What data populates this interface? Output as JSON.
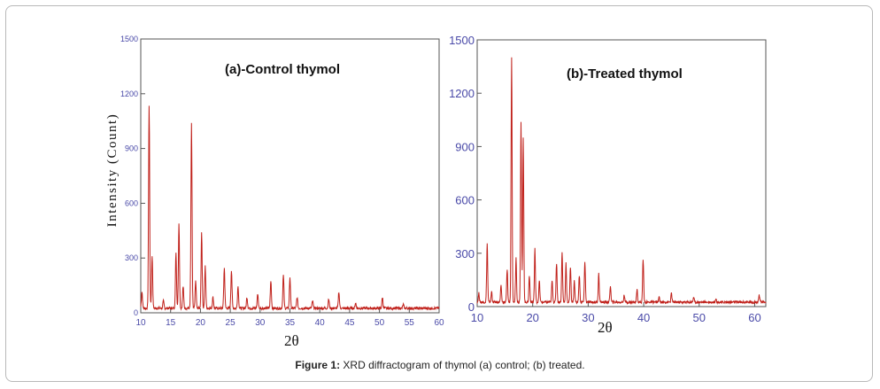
{
  "figure": {
    "caption_label": "Figure 1:",
    "caption_text": " XRD diffractogram of thymol (a) control; (b) treated."
  },
  "colors": {
    "line": "#c0201a",
    "axis": "#4a4aa8",
    "frame": "#555555"
  },
  "chart_data": [
    {
      "type": "line",
      "title": "(a)-Control thymol",
      "xlabel": "2θ",
      "ylabel": "Intensity (Count)",
      "xlim": [
        10,
        60
      ],
      "ylim": [
        0,
        1500
      ],
      "x_ticks": [
        "10",
        "15",
        "20",
        "25",
        "30",
        "35",
        "40",
        "45",
        "50",
        "55",
        "60"
      ],
      "y_ticks": [
        "0",
        "300",
        "600",
        "900",
        "1200",
        "1500"
      ],
      "grid": false,
      "peaks": [
        {
          "x": 10.2,
          "y": 90
        },
        {
          "x": 11.4,
          "y": 1110
        },
        {
          "x": 11.9,
          "y": 290
        },
        {
          "x": 13.8,
          "y": 40
        },
        {
          "x": 15.9,
          "y": 300
        },
        {
          "x": 16.4,
          "y": 460
        },
        {
          "x": 17.1,
          "y": 120
        },
        {
          "x": 18.5,
          "y": 1010
        },
        {
          "x": 19.2,
          "y": 150
        },
        {
          "x": 20.2,
          "y": 410
        },
        {
          "x": 20.8,
          "y": 230
        },
        {
          "x": 22.1,
          "y": 60
        },
        {
          "x": 24.0,
          "y": 220
        },
        {
          "x": 25.2,
          "y": 210
        },
        {
          "x": 26.3,
          "y": 120
        },
        {
          "x": 27.8,
          "y": 60
        },
        {
          "x": 29.6,
          "y": 80
        },
        {
          "x": 31.8,
          "y": 150
        },
        {
          "x": 33.9,
          "y": 180
        },
        {
          "x": 35.0,
          "y": 170
        },
        {
          "x": 36.2,
          "y": 60
        },
        {
          "x": 38.8,
          "y": 40
        },
        {
          "x": 41.5,
          "y": 50
        },
        {
          "x": 43.2,
          "y": 90
        },
        {
          "x": 46.0,
          "y": 30
        },
        {
          "x": 50.5,
          "y": 60
        },
        {
          "x": 54.0,
          "y": 20
        }
      ]
    },
    {
      "type": "line",
      "title": "(b)-Treated thymol",
      "xlabel": "2θ",
      "ylabel": "",
      "xlim": [
        10,
        62
      ],
      "ylim": [
        0,
        1500
      ],
      "x_ticks": [
        "10",
        "20",
        "30",
        "40",
        "50",
        "60"
      ],
      "y_ticks": [
        "0",
        "300",
        "600",
        "900",
        "1200",
        "1500"
      ],
      "grid": false,
      "peaks": [
        {
          "x": 10.3,
          "y": 50
        },
        {
          "x": 11.8,
          "y": 330
        },
        {
          "x": 12.6,
          "y": 60
        },
        {
          "x": 14.3,
          "y": 90
        },
        {
          "x": 15.4,
          "y": 180
        },
        {
          "x": 16.2,
          "y": 1370
        },
        {
          "x": 17.0,
          "y": 250
        },
        {
          "x": 17.9,
          "y": 1020
        },
        {
          "x": 18.3,
          "y": 920
        },
        {
          "x": 19.4,
          "y": 150
        },
        {
          "x": 20.4,
          "y": 300
        },
        {
          "x": 21.2,
          "y": 120
        },
        {
          "x": 23.5,
          "y": 120
        },
        {
          "x": 24.3,
          "y": 220
        },
        {
          "x": 25.3,
          "y": 280
        },
        {
          "x": 26.0,
          "y": 220
        },
        {
          "x": 26.8,
          "y": 200
        },
        {
          "x": 27.5,
          "y": 120
        },
        {
          "x": 28.4,
          "y": 150
        },
        {
          "x": 29.4,
          "y": 230
        },
        {
          "x": 31.9,
          "y": 160
        },
        {
          "x": 34.0,
          "y": 90
        },
        {
          "x": 36.5,
          "y": 40
        },
        {
          "x": 38.8,
          "y": 70
        },
        {
          "x": 39.9,
          "y": 240
        },
        {
          "x": 42.8,
          "y": 30
        },
        {
          "x": 45.0,
          "y": 50
        },
        {
          "x": 49.0,
          "y": 30
        },
        {
          "x": 53.0,
          "y": 20
        },
        {
          "x": 60.8,
          "y": 40
        }
      ]
    }
  ]
}
